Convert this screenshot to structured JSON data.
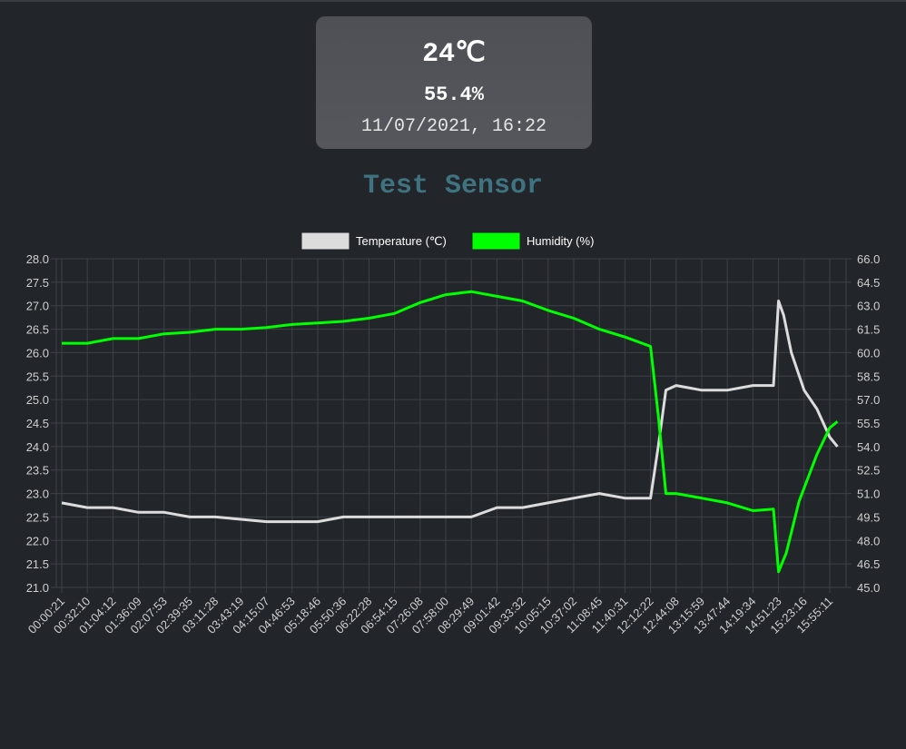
{
  "card": {
    "temperature": "24℃",
    "humidity": "55.4%",
    "timestamp": "11/07/2021, 16:22"
  },
  "title": "Test Sensor",
  "colors": {
    "background": "#22252a",
    "temperature_line": "#dcdcdc",
    "humidity_line": "#00ff00",
    "title": "#3f7380",
    "grid": "#3e4146"
  },
  "chart_data": {
    "type": "line",
    "legend": [
      "Temperature (℃)",
      "Humidity (%)"
    ],
    "legend_position": "top-center",
    "grid": true,
    "x_tick_labels": [
      "00:00:21",
      "00:32:10",
      "01:04:12",
      "01:36:09",
      "02:07:53",
      "02:39:35",
      "03:11:28",
      "03:43:19",
      "04:15:07",
      "04:46:53",
      "05:18:46",
      "05:50:36",
      "06:22:28",
      "06:54:15",
      "07:26:08",
      "07:58:00",
      "08:29:49",
      "09:01:42",
      "09:33:32",
      "10:05:15",
      "10:37:02",
      "11:08:45",
      "11:40:31",
      "12:12:22",
      "12:44:08",
      "13:15:59",
      "13:47:44",
      "14:19:34",
      "14:51:23",
      "15:23:16",
      "15:55:11"
    ],
    "y_left": {
      "label": "Temperature (℃)",
      "min": 21.0,
      "max": 28.0,
      "ticks": [
        "28.0",
        "27.5",
        "27.0",
        "26.5",
        "26.0",
        "25.5",
        "25.0",
        "24.5",
        "24.0",
        "23.5",
        "23.0",
        "22.5",
        "22.0",
        "21.5",
        "21.0"
      ]
    },
    "y_right": {
      "label": "Humidity (%)",
      "min": 45.0,
      "max": 66.0,
      "ticks": [
        "66.0",
        "64.5",
        "63.0",
        "61.5",
        "60.0",
        "58.5",
        "57.0",
        "55.5",
        "54.0",
        "52.5",
        "51.0",
        "49.5",
        "48.0",
        "46.5",
        "45.0"
      ]
    },
    "series": [
      {
        "name": "Temperature (℃)",
        "axis": "left",
        "x": [
          0,
          1,
          2,
          3,
          4,
          5,
          6,
          7,
          8,
          9,
          10,
          11,
          12,
          13,
          14,
          15,
          16,
          17,
          18,
          19,
          20,
          21,
          22,
          23,
          23.3,
          23.6,
          24,
          25,
          26,
          27,
          27.8,
          28,
          28.2,
          28.5,
          29,
          29.5,
          30,
          30.3
        ],
        "values": [
          22.8,
          22.7,
          22.7,
          22.6,
          22.6,
          22.5,
          22.5,
          22.45,
          22.4,
          22.4,
          22.4,
          22.5,
          22.5,
          22.5,
          22.5,
          22.5,
          22.5,
          22.7,
          22.7,
          22.8,
          22.9,
          23.0,
          22.9,
          22.9,
          24.0,
          25.2,
          25.3,
          25.2,
          25.2,
          25.3,
          25.3,
          27.1,
          26.8,
          26.0,
          25.2,
          24.8,
          24.2,
          24.0
        ]
      },
      {
        "name": "Humidity (%)",
        "axis": "right",
        "x": [
          0,
          1,
          2,
          3,
          4,
          5,
          6,
          7,
          8,
          9,
          10,
          11,
          12,
          13,
          14,
          15,
          16,
          17,
          18,
          19,
          20,
          21,
          22,
          23,
          23.3,
          23.6,
          24,
          25,
          26,
          27,
          27.8,
          28,
          28.3,
          28.8,
          29.5,
          30,
          30.3
        ],
        "values": [
          60.6,
          60.6,
          60.9,
          60.9,
          61.2,
          61.3,
          61.5,
          61.5,
          61.6,
          61.8,
          61.9,
          62.0,
          62.2,
          62.5,
          63.2,
          63.7,
          63.9,
          63.6,
          63.3,
          62.7,
          62.2,
          61.5,
          61.0,
          60.4,
          56.0,
          51.0,
          51.0,
          50.7,
          50.4,
          49.9,
          50.0,
          46.0,
          47.2,
          50.5,
          53.5,
          55.2,
          55.6
        ]
      }
    ]
  }
}
